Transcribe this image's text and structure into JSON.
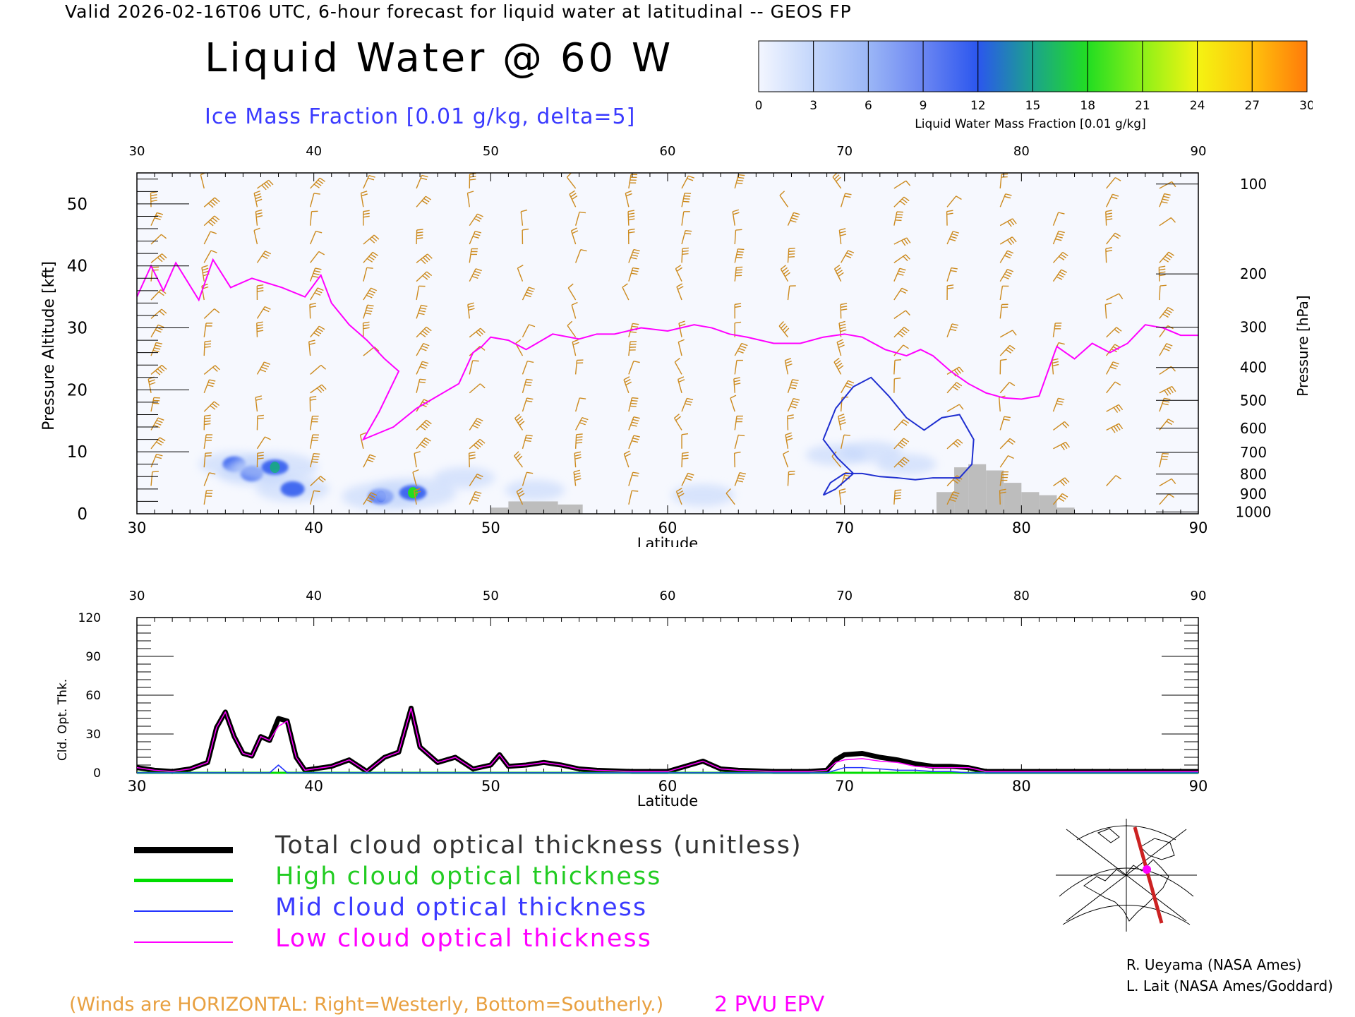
{
  "header": {
    "line": "Valid 2026-02-16T06 UTC, 6-hour forecast for liquid water at latitudinal -- GEOS FP",
    "title": "Liquid Water @ 60 W",
    "subtitle": "Ice Mass Fraction [0.01 g/kg, delta=5]"
  },
  "colorbar": {
    "label": "Liquid Water Mass Fraction [0.01 g/kg]",
    "ticks": [
      "0",
      "3",
      "6",
      "9",
      "12",
      "15",
      "18",
      "21",
      "24",
      "27",
      "30"
    ],
    "colors": [
      "#f3f6ff",
      "#c3d6fb",
      "#9bb6f6",
      "#6b86f2",
      "#2b56ee",
      "#1ba38c",
      "#22dd22",
      "#8cf018",
      "#f4f412",
      "#ffc20c",
      "#ff7a0a"
    ]
  },
  "colors": {
    "wind_barbs": "#cc8a1e",
    "epv_contour": "#ff00ff",
    "ice_contour": "#1f2fd0",
    "terrain": "#bdbdbd",
    "total_line": "#000000",
    "high_line": "#00dd00",
    "mid_line": "#2233ff",
    "low_line": "#ff00ff"
  },
  "chart_data": [
    {
      "type": "heatmap",
      "xlabel": "Latitude",
      "ylabel": "Pressure Altitude [kft]",
      "y2label": "Pressure [hPa]",
      "xlim": [
        30,
        90
      ],
      "ylim": [
        0,
        55
      ],
      "x_ticks": [
        "30",
        "40",
        "50",
        "60",
        "70",
        "80",
        "90"
      ],
      "y_ticks": [
        "0",
        "10",
        "20",
        "30",
        "40",
        "50"
      ],
      "pressure_ticks": [
        {
          "label": "100",
          "kft": 53.2
        },
        {
          "label": "200",
          "kft": 38.7
        },
        {
          "label": "300",
          "kft": 30.1
        },
        {
          "label": "400",
          "kft": 23.6
        },
        {
          "label": "500",
          "kft": 18.3
        },
        {
          "label": "600",
          "kft": 13.8
        },
        {
          "label": "700",
          "kft": 9.9
        },
        {
          "label": "800",
          "kft": 6.4
        },
        {
          "label": "900",
          "kft": 3.2
        },
        {
          "label": "1000",
          "kft": 0.3
        }
      ],
      "liquid_water_blobs": [
        {
          "lat": 35.5,
          "kft": 8.0,
          "value": 8
        },
        {
          "lat": 36.5,
          "kft": 6.5,
          "value": 7
        },
        {
          "lat": 37.8,
          "kft": 7.5,
          "value": 17
        },
        {
          "lat": 38.8,
          "kft": 4.0,
          "value": 10
        },
        {
          "lat": 43.8,
          "kft": 2.8,
          "value": 13
        },
        {
          "lat": 45.6,
          "kft": 3.4,
          "value": 18
        },
        {
          "lat": 48.5,
          "kft": 5.8,
          "value": 3
        },
        {
          "lat": 52.5,
          "kft": 3.8,
          "value": 2
        },
        {
          "lat": 62.0,
          "kft": 3.0,
          "value": 4
        },
        {
          "lat": 69.5,
          "kft": 9.5,
          "value": 2
        },
        {
          "lat": 71.5,
          "kft": 10.0,
          "value": 3
        },
        {
          "lat": 73.5,
          "kft": 8.0,
          "value": 2
        }
      ],
      "epv_2pvu_kft": [
        [
          30,
          35
        ],
        [
          30.8,
          40
        ],
        [
          31.5,
          36
        ],
        [
          32.2,
          40.5
        ],
        [
          33.5,
          34.5
        ],
        [
          34.3,
          41
        ],
        [
          35.3,
          36.5
        ],
        [
          36.5,
          38
        ],
        [
          38.2,
          36.5
        ],
        [
          39.5,
          35
        ],
        [
          40.4,
          38.5
        ],
        [
          41,
          34
        ],
        [
          42,
          30.5
        ],
        [
          43,
          28
        ],
        [
          44,
          25
        ],
        [
          44.8,
          23
        ],
        [
          43.7,
          16.5
        ],
        [
          42.8,
          12
        ],
        [
          44.5,
          14
        ],
        [
          45.8,
          17
        ],
        [
          47,
          19
        ],
        [
          48.2,
          21
        ],
        [
          49,
          26
        ],
        [
          49.5,
          27
        ],
        [
          50,
          28.5
        ],
        [
          51,
          28
        ],
        [
          52,
          26.5
        ],
        [
          53.5,
          29
        ],
        [
          55,
          28.2
        ],
        [
          56,
          29
        ],
        [
          57,
          29
        ],
        [
          58.5,
          30
        ],
        [
          60,
          29.5
        ],
        [
          61.5,
          30.5
        ],
        [
          62.5,
          30
        ],
        [
          63.5,
          29
        ],
        [
          64.5,
          28.5
        ],
        [
          66,
          27.5
        ],
        [
          67.5,
          27.5
        ],
        [
          68.8,
          28.5
        ],
        [
          70,
          29
        ],
        [
          71,
          28.5
        ],
        [
          72.3,
          26.5
        ],
        [
          73.5,
          25.5
        ],
        [
          74.3,
          26.5
        ],
        [
          75,
          25.5
        ],
        [
          76,
          23
        ],
        [
          77,
          21
        ],
        [
          78,
          19.5
        ],
        [
          79,
          18.7
        ],
        [
          80,
          18.5
        ],
        [
          81,
          19
        ],
        [
          82,
          27
        ],
        [
          83,
          25
        ],
        [
          84,
          27.5
        ],
        [
          85,
          26
        ],
        [
          86,
          27.5
        ],
        [
          87,
          30.5
        ],
        [
          88,
          30
        ],
        [
          89,
          28.8
        ],
        [
          90,
          28.8
        ]
      ],
      "ice_contour_kft": [
        [
          68.8,
          3
        ],
        [
          69.2,
          5
        ],
        [
          70,
          6.5
        ],
        [
          71,
          6.5
        ],
        [
          72,
          6
        ],
        [
          73,
          5.8
        ],
        [
          74,
          5.5
        ],
        [
          75,
          5.8
        ],
        [
          76.5,
          5.8
        ],
        [
          77.2,
          8
        ],
        [
          77.3,
          12
        ],
        [
          76.5,
          16
        ],
        [
          75.5,
          15.5
        ],
        [
          74.5,
          13.5
        ],
        [
          73.5,
          15.5
        ],
        [
          72.5,
          19
        ],
        [
          71.5,
          22
        ],
        [
          70.5,
          20.5
        ],
        [
          69.5,
          17
        ],
        [
          68.8,
          12
        ],
        [
          69.6,
          9
        ],
        [
          70.5,
          6.5
        ],
        [
          69.5,
          4
        ],
        [
          68.8,
          3
        ]
      ],
      "terrain_kft": [
        {
          "lat_start": 50.0,
          "lat_end": 51.0,
          "kft": 1.0
        },
        {
          "lat_start": 51.0,
          "lat_end": 53.8,
          "kft": 2.0
        },
        {
          "lat_start": 53.8,
          "lat_end": 55.2,
          "kft": 1.5
        },
        {
          "lat_start": 75.2,
          "lat_end": 76.2,
          "kft": 3.5
        },
        {
          "lat_start": 76.2,
          "lat_end": 77.0,
          "kft": 7.5
        },
        {
          "lat_start": 77.0,
          "lat_end": 78.0,
          "kft": 8.0
        },
        {
          "lat_start": 78.0,
          "lat_end": 79.0,
          "kft": 7.0
        },
        {
          "lat_start": 79.0,
          "lat_end": 80.0,
          "kft": 5.0
        },
        {
          "lat_start": 80.0,
          "lat_end": 81.0,
          "kft": 3.5
        },
        {
          "lat_start": 81.0,
          "lat_end": 82.0,
          "kft": 3.0
        },
        {
          "lat_start": 82.0,
          "lat_end": 83.0,
          "kft": 1.0
        }
      ]
    },
    {
      "type": "line",
      "xlabel": "Latitude",
      "ylabel": "Cld. Opt. Thk.",
      "xlim": [
        30,
        90
      ],
      "ylim": [
        0,
        120
      ],
      "x_ticks": [
        "30",
        "40",
        "50",
        "60",
        "70",
        "80",
        "90"
      ],
      "y_ticks": [
        "0",
        "30",
        "60",
        "90",
        "120"
      ],
      "x": [
        30,
        31,
        32,
        33,
        34,
        34.5,
        35,
        35.5,
        36,
        36.5,
        37,
        37.5,
        38,
        38.5,
        39,
        39.5,
        40,
        41,
        42,
        43,
        44,
        44.8,
        45.5,
        46,
        47,
        48,
        49,
        50,
        50.5,
        51,
        52,
        53,
        54,
        55,
        56,
        58,
        60,
        62,
        63,
        64,
        66,
        68,
        69,
        69.5,
        70,
        71,
        72,
        73,
        74,
        75,
        76,
        77,
        78,
        80,
        85,
        90
      ],
      "series": [
        {
          "name": "Total cloud optical thickness (unitless)",
          "values": [
            4,
            2,
            1,
            3,
            8,
            35,
            47,
            28,
            15,
            13,
            28,
            25,
            42,
            40,
            12,
            2,
            3,
            5,
            10,
            1,
            12,
            16,
            50,
            20,
            8,
            12,
            3,
            6,
            14,
            5,
            6,
            8,
            6,
            3,
            2,
            1,
            1,
            9,
            3,
            2,
            1,
            1,
            2,
            10,
            14,
            15,
            12,
            10,
            7,
            5,
            5,
            4,
            1,
            1,
            1,
            1
          ]
        },
        {
          "name": "High cloud optical thickness",
          "values": [
            0,
            0,
            0,
            0,
            0,
            0,
            0,
            0,
            0,
            0,
            0,
            0,
            0,
            0,
            0,
            0,
            0,
            0,
            0,
            0,
            0,
            0,
            0,
            0,
            0,
            0,
            0,
            0,
            0,
            0,
            0,
            0,
            0,
            0,
            0,
            0,
            0,
            0,
            0,
            0,
            0,
            0,
            0,
            0,
            0,
            0,
            0,
            0,
            0,
            0,
            0,
            0,
            0,
            0,
            0,
            0
          ]
        },
        {
          "name": "Mid cloud optical thickness",
          "values": [
            0,
            0,
            0,
            0,
            0,
            0,
            0,
            0,
            0,
            0,
            0,
            0,
            6,
            0,
            0,
            0,
            0,
            0,
            0,
            0,
            0,
            0,
            0,
            0,
            0,
            0,
            0,
            0,
            0,
            0,
            0,
            0,
            0,
            0,
            0,
            0,
            0,
            0,
            0,
            0,
            0,
            0,
            0,
            2,
            4,
            4,
            3,
            2,
            2,
            1,
            1,
            0,
            0,
            0,
            0,
            0
          ]
        },
        {
          "name": "Low cloud optical thickness",
          "values": [
            4,
            2,
            1,
            3,
            8,
            35,
            47,
            28,
            15,
            13,
            28,
            25,
            36,
            40,
            12,
            2,
            3,
            5,
            10,
            1,
            12,
            16,
            50,
            20,
            8,
            12,
            3,
            6,
            14,
            5,
            6,
            8,
            6,
            3,
            2,
            1,
            1,
            9,
            3,
            2,
            1,
            1,
            2,
            8,
            10,
            11,
            9,
            8,
            5,
            4,
            4,
            4,
            1,
            1,
            1,
            1
          ]
        }
      ]
    }
  ],
  "legend": {
    "total": "Total cloud optical thickness (unitless)",
    "high": "High cloud optical thickness",
    "mid": "Mid cloud optical thickness",
    "low": "Low cloud optical thickness"
  },
  "notes": {
    "winds": "(Winds are HORIZONTAL: Right=Westerly, Bottom=Southerly.)",
    "pvu": "2 PVU EPV"
  },
  "credits": {
    "line1": "R. Ueyama (NASA Ames)",
    "line2": "L. Lait (NASA Ames/Goddard)"
  }
}
